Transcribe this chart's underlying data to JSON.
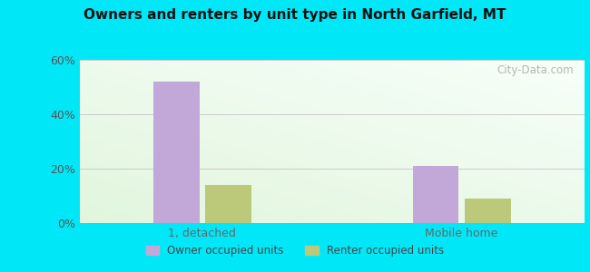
{
  "title": "Owners and renters by unit type in North Garfield, MT",
  "categories": [
    "1, detached",
    "Mobile home"
  ],
  "owner_values": [
    52.0,
    21.0
  ],
  "renter_values": [
    14.0,
    9.0
  ],
  "owner_color": "#c2a8d8",
  "renter_color": "#bcc87a",
  "ylim": [
    0,
    60
  ],
  "yticks": [
    0,
    20,
    40,
    60
  ],
  "yticklabels": [
    "0%",
    "20%",
    "40%",
    "60%"
  ],
  "bar_width": 0.32,
  "outer_bg": "#00e8f8",
  "legend_owner": "Owner occupied units",
  "legend_renter": "Renter occupied units",
  "watermark": "City-Data.com",
  "bg_color_topleft": "#e8f5e2",
  "bg_color_bottomright": "#f0f8f0",
  "bg_color_white": "#f8fffc"
}
